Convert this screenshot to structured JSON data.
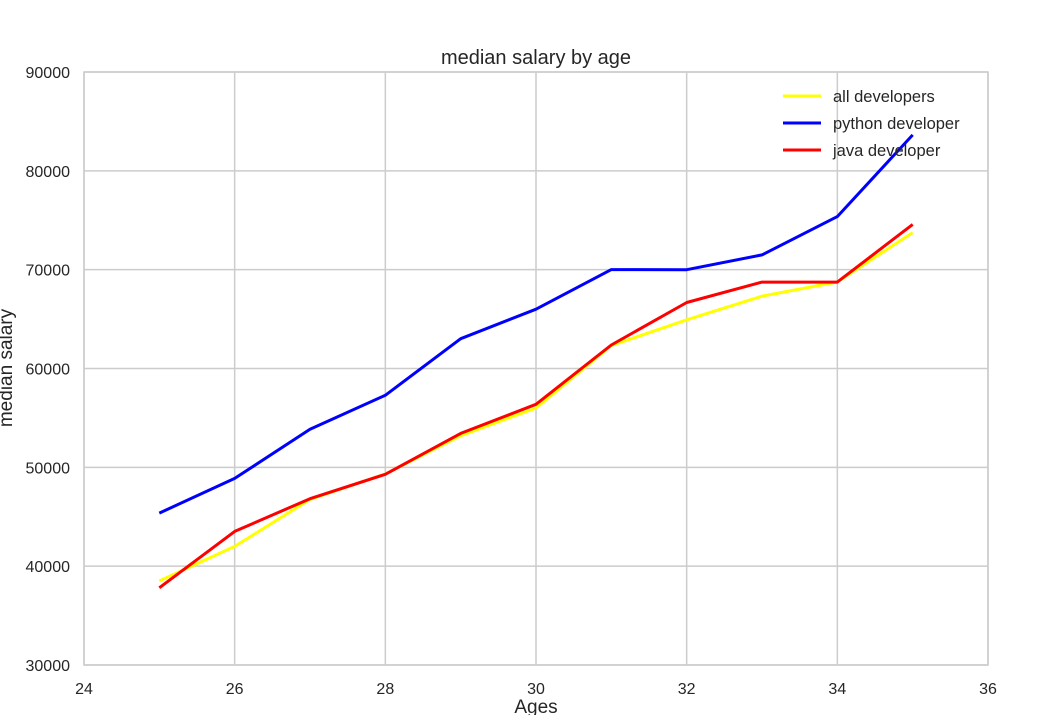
{
  "chart_data": {
    "type": "line",
    "title": "median salary by age",
    "xlabel": "Ages",
    "ylabel": "median salary",
    "xlim": [
      24,
      36
    ],
    "ylim": [
      30000,
      90000
    ],
    "x_ticks": [
      "24",
      "26",
      "28",
      "30",
      "32",
      "34",
      "36"
    ],
    "y_ticks": [
      "30000",
      "40000",
      "50000",
      "60000",
      "70000",
      "80000",
      "90000"
    ],
    "grid": true,
    "legend_position": "top-right",
    "x": [
      25,
      26,
      27,
      28,
      29,
      30,
      31,
      32,
      33,
      34,
      35
    ],
    "series": [
      {
        "name": "all developers",
        "color": "#ffff00",
        "values": [
          38496,
          42000,
          46752,
          49320,
          53200,
          56000,
          62316,
          64928,
          67317,
          68748,
          73752
        ]
      },
      {
        "name": "python developer",
        "color": "#0000ff",
        "values": [
          45372,
          48876,
          53850,
          57287,
          63016,
          65998,
          70003,
          70000,
          71496,
          75370,
          83640
        ]
      },
      {
        "name": "java developer",
        "color": "#ff0000",
        "values": [
          37810,
          43515,
          46823,
          49293,
          53437,
          56373,
          62375,
          66674,
          68745,
          68746,
          74583
        ]
      }
    ]
  }
}
